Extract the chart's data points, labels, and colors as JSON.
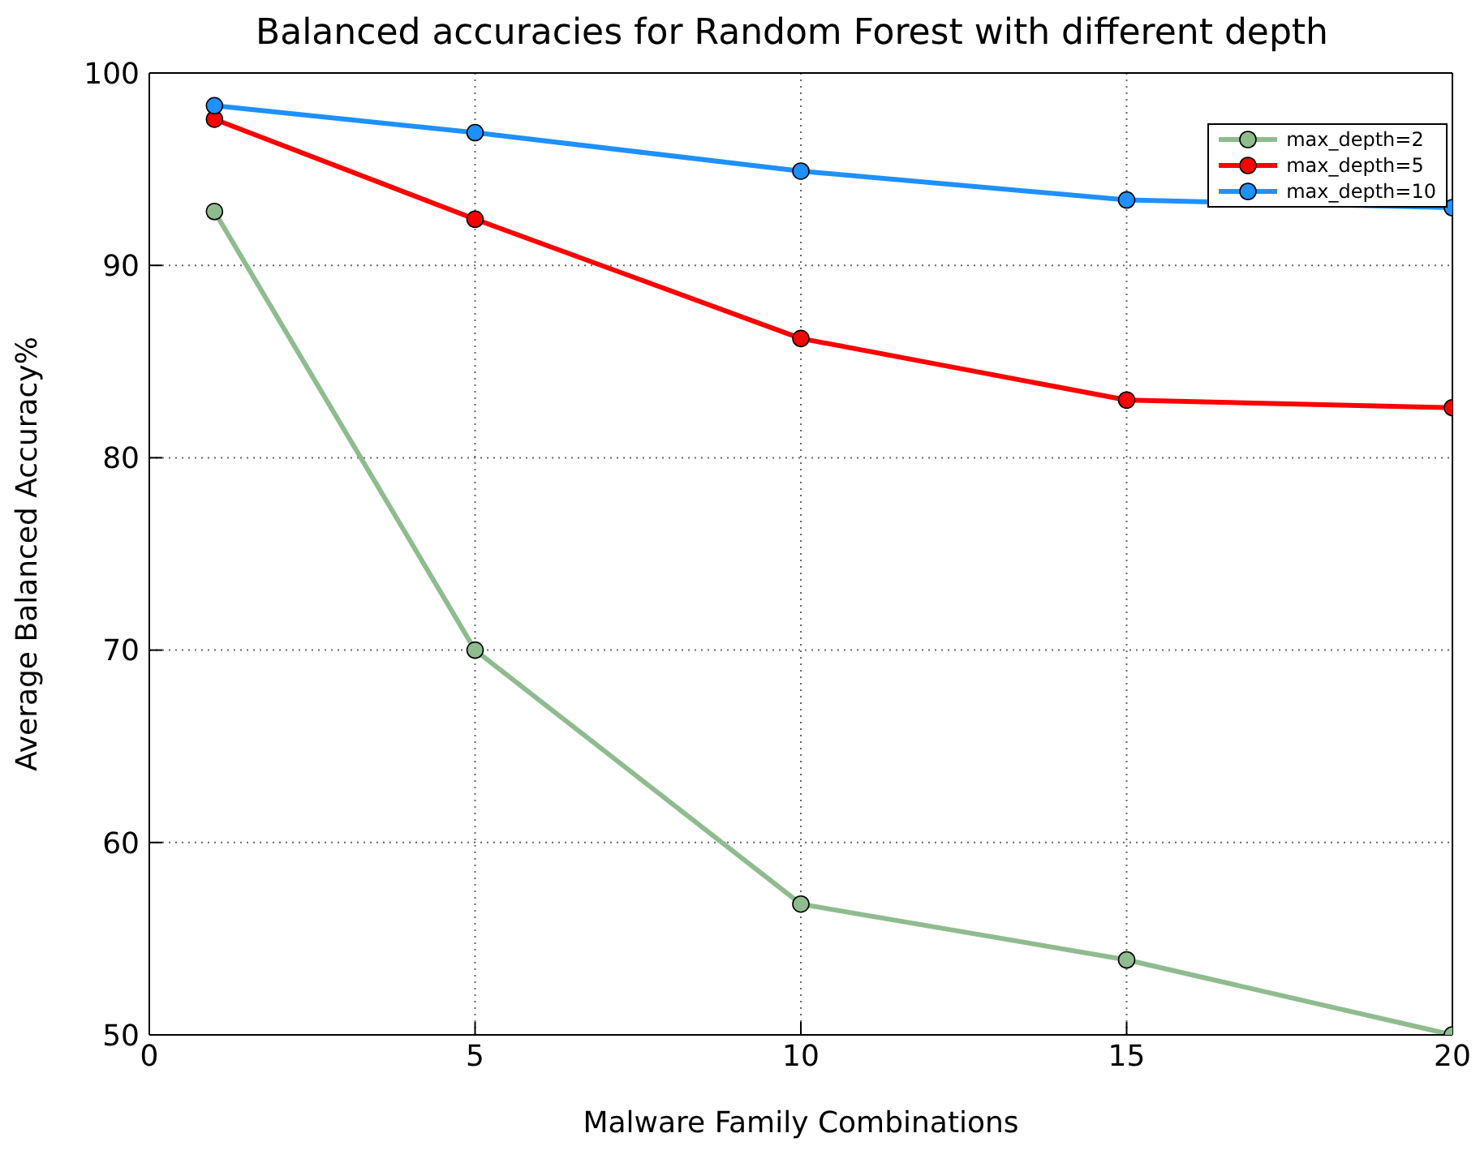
{
  "chart_data": {
    "type": "line",
    "title": "Balanced accuracies for Random Forest with different depth",
    "xlabel": "Malware Family Combinations",
    "ylabel": "Average Balanced Accuracy%",
    "x": [
      1,
      5,
      10,
      15,
      20
    ],
    "series": [
      {
        "name": "max_depth=2",
        "color": "#8fbc8f",
        "values": [
          92.8,
          70.0,
          56.8,
          53.9,
          50.0
        ]
      },
      {
        "name": "max_depth=5",
        "color": "#ff0000",
        "values": [
          97.6,
          92.4,
          86.2,
          83.0,
          82.6
        ]
      },
      {
        "name": "max_depth=10",
        "color": "#1e90ff",
        "values": [
          98.3,
          96.9,
          94.9,
          93.4,
          93.0
        ]
      }
    ],
    "xlim": [
      0,
      20
    ],
    "xticks": [
      0,
      5,
      10,
      15,
      20
    ],
    "ylim": [
      50,
      100
    ],
    "yticks": [
      50,
      60,
      70,
      80,
      90,
      100
    ],
    "grid": true,
    "legend": "top right",
    "marker": "circle",
    "line_style": "solid"
  }
}
